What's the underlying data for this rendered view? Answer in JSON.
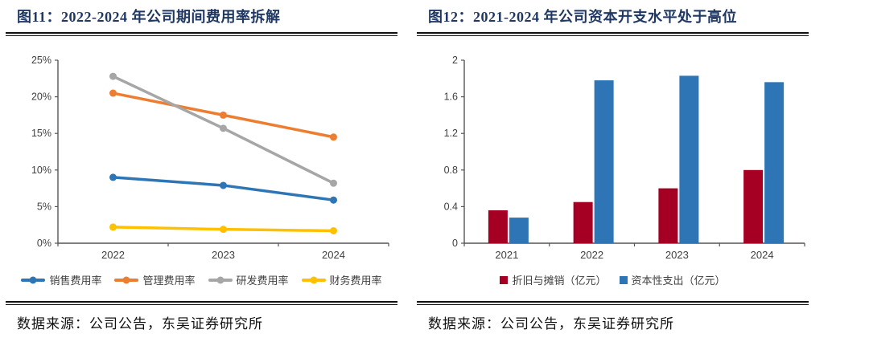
{
  "chart_data": [
    {
      "type": "line",
      "title": "图11：2022-2024 年公司期间费用率拆解",
      "categories": [
        "2022",
        "2023",
        "2024"
      ],
      "series": [
        {
          "name": "销售费用率",
          "color": "#2E75B6",
          "values": [
            9.0,
            7.9,
            5.9
          ]
        },
        {
          "name": "管理费用率",
          "color": "#ED7D31",
          "values": [
            20.5,
            17.5,
            14.5
          ]
        },
        {
          "name": "研发费用率",
          "color": "#A6A6A6",
          "values": [
            22.8,
            15.7,
            8.2
          ]
        },
        {
          "name": "财务费用率",
          "color": "#FFC000",
          "values": [
            2.2,
            1.9,
            1.7
          ]
        }
      ],
      "ylim": [
        0,
        25
      ],
      "ytick_values": [
        0,
        5,
        10,
        15,
        20,
        25
      ],
      "ytick_labels": [
        "0%",
        "5%",
        "10%",
        "15%",
        "20%",
        "25%"
      ],
      "grid": false,
      "legend_position": "bottom",
      "source": "数据来源：公司公告，东吴证券研究所"
    },
    {
      "type": "bar",
      "title": "图12：2021-2024 年公司资本开支水平处于高位",
      "categories": [
        "2021",
        "2022",
        "2023",
        "2024"
      ],
      "series": [
        {
          "name": "折旧与摊销（亿元）",
          "color": "#A50023",
          "values": [
            0.36,
            0.45,
            0.6,
            0.8
          ]
        },
        {
          "name": "资本性支出（亿元）",
          "color": "#2E75B6",
          "values": [
            0.28,
            1.78,
            1.83,
            1.76
          ]
        }
      ],
      "ylim": [
        0,
        2
      ],
      "ytick_values": [
        0,
        0.4,
        0.8,
        1.2,
        1.6,
        2
      ],
      "ytick_labels": [
        "0",
        "0.4",
        "0.8",
        "1.2",
        "1.6",
        "2"
      ],
      "grid": false,
      "legend_position": "bottom",
      "source": "数据来源：公司公告，东吴证券研究所"
    }
  ]
}
